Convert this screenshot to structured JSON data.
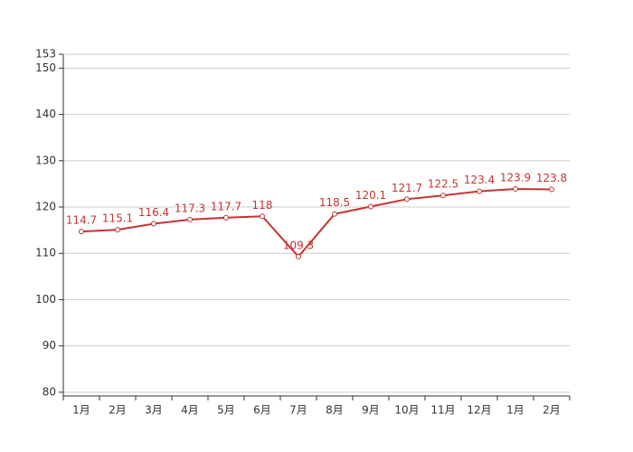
{
  "chart_data": {
    "type": "line",
    "categories": [
      "1月",
      "2月",
      "3月",
      "4月",
      "5月",
      "6月",
      "7月",
      "8月",
      "9月",
      "10月",
      "11月",
      "12月",
      "1月",
      "2月"
    ],
    "series": [
      {
        "color": "#c23531",
        "values": [
          114.7,
          115.1,
          116.4,
          117.3,
          117.7,
          118,
          109.3,
          118.5,
          120.1,
          121.7,
          122.5,
          123.4,
          123.9,
          123.8
        ]
      }
    ],
    "ylim": [
      79.2,
      153
    ],
    "yticks": [
      80,
      90,
      100,
      110,
      120,
      130,
      140,
      150,
      153
    ],
    "grid": true
  }
}
